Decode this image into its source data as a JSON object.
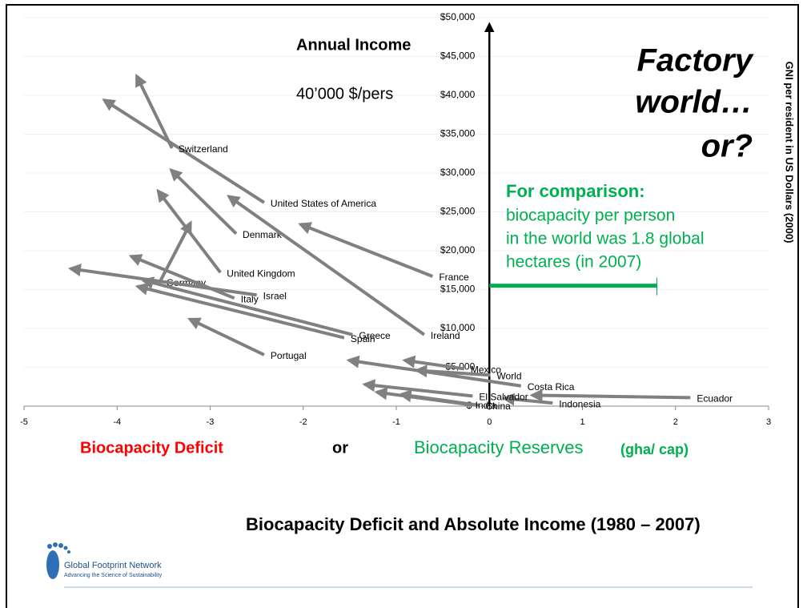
{
  "chart_data": {
    "type": "arrow",
    "title": "Annual Income",
    "subtitle": "40’000 $/pers",
    "headline": [
      "Factory",
      "world…",
      "or?"
    ],
    "y_axis_label": "GNI per resident in US Dollars (2000)",
    "note": [
      "For comparison:",
      "biocapacity per person",
      "in the world was 1.8 global",
      "hectares (in 2007)"
    ],
    "comparison_x": 1.8,
    "comparison_y": 15500,
    "x_label_left": "Biocapacity  Deficit",
    "x_label_mid": "or",
    "x_label_right": "Biocapacity Reserves",
    "x_label_unit": "(gha/ cap)",
    "footer_title": "Biocapacity Deficit and Absolute Income (1980 – 2007)",
    "logo_name": "Global Footprint Network",
    "logo_tagline": "Advancing the Science of Sustainability",
    "categories": [
      "United States of America",
      "Switzerland",
      "Denmark",
      "United Kingdom",
      "Ireland",
      "France",
      "Germany",
      "Italy",
      "Israel",
      "Greece",
      "Spain",
      "Portugal",
      "Mexico",
      "World",
      "Costa Rica",
      "Ecuador",
      "Indonesia",
      "El Salvador",
      "China",
      "India"
    ],
    "x_start": [
      -2.42,
      -3.41,
      -2.72,
      -2.89,
      -0.7,
      -0.61,
      -3.54,
      -2.74,
      -2.5,
      -1.47,
      -1.56,
      -2.42,
      -0.27,
      0.01,
      0.34,
      2.16,
      0.68,
      -0.18,
      -0.11,
      -0.22
    ],
    "y_start": [
      26200,
      33200,
      22200,
      17200,
      9200,
      16700,
      16000,
      13900,
      14300,
      9200,
      8800,
      6600,
      4800,
      4000,
      2600,
      1100,
      400,
      1300,
      100,
      200
    ],
    "x_end": [
      -4.14,
      -3.79,
      -3.42,
      -3.56,
      -2.8,
      -2.03,
      -3.21,
      -3.85,
      -4.5,
      -3.72,
      -3.78,
      -3.22,
      -0.91,
      -0.78,
      -1.51,
      0.46,
      0.16,
      -1.34,
      -0.95,
      -1.21
    ],
    "y_end": [
      39400,
      42500,
      30400,
      27700,
      27000,
      23400,
      23600,
      19300,
      17700,
      16200,
      15400,
      11200,
      5900,
      4600,
      5900,
      1400,
      1000,
      2800,
      1500,
      1800
    ],
    "color": "#808080",
    "xlim": [
      -5,
      3
    ],
    "xticks": [
      -5,
      -4,
      -3,
      -2,
      -1,
      0,
      1,
      2,
      3
    ],
    "ylim": [
      0,
      50000
    ],
    "yticks": [
      {
        "value": 0,
        "label": "$-"
      },
      {
        "value": 5000,
        "label": "$5,000"
      },
      {
        "value": 10000,
        "label": "$10,000"
      },
      {
        "value": 15000,
        "label": "$15,000"
      },
      {
        "value": 20000,
        "label": "$20,000"
      },
      {
        "value": 25000,
        "label": "$25,000"
      },
      {
        "value": 30000,
        "label": "$30,000"
      },
      {
        "value": 35000,
        "label": "$35,000"
      },
      {
        "value": 40000,
        "label": "$40,000"
      },
      {
        "value": 45000,
        "label": "$45,000"
      },
      {
        "value": 50000,
        "label": "$50,000"
      }
    ],
    "grid": true
  }
}
